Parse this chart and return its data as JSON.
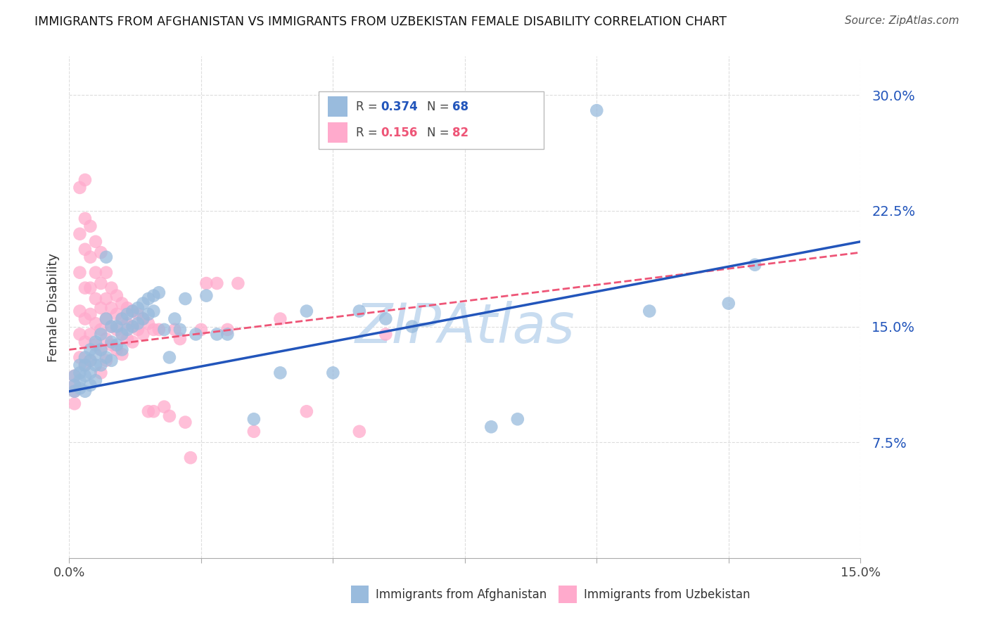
{
  "title": "IMMIGRANTS FROM AFGHANISTAN VS IMMIGRANTS FROM UZBEKISTAN FEMALE DISABILITY CORRELATION CHART",
  "source": "Source: ZipAtlas.com",
  "ylabel": "Female Disability",
  "yticks": [
    0.075,
    0.15,
    0.225,
    0.3
  ],
  "ytick_labels": [
    "7.5%",
    "15.0%",
    "22.5%",
    "30.0%"
  ],
  "xmin": 0.0,
  "xmax": 0.15,
  "ymin": 0.0,
  "ymax": 0.325,
  "blue_R": "0.374",
  "blue_N": "68",
  "pink_R": "0.156",
  "pink_N": "82",
  "blue_color": "#99BBDD",
  "pink_color": "#FFAACC",
  "blue_line_color": "#2255BB",
  "pink_line_color": "#EE5577",
  "watermark": "ZIPAtlas",
  "watermark_color": "#C8DCF0",
  "legend_label_blue": "Immigrants from Afghanistan",
  "legend_label_pink": "Immigrants from Uzbekistan",
  "blue_scatter_x": [
    0.001,
    0.001,
    0.001,
    0.002,
    0.002,
    0.002,
    0.002,
    0.003,
    0.003,
    0.003,
    0.003,
    0.004,
    0.004,
    0.004,
    0.004,
    0.005,
    0.005,
    0.005,
    0.005,
    0.006,
    0.006,
    0.006,
    0.007,
    0.007,
    0.007,
    0.008,
    0.008,
    0.008,
    0.009,
    0.009,
    0.01,
    0.01,
    0.01,
    0.011,
    0.011,
    0.012,
    0.012,
    0.013,
    0.013,
    0.014,
    0.014,
    0.015,
    0.015,
    0.016,
    0.016,
    0.017,
    0.018,
    0.019,
    0.02,
    0.021,
    0.022,
    0.024,
    0.026,
    0.028,
    0.03,
    0.035,
    0.04,
    0.045,
    0.05,
    0.055,
    0.06,
    0.065,
    0.08,
    0.085,
    0.1,
    0.11,
    0.125,
    0.13
  ],
  "blue_scatter_y": [
    0.118,
    0.112,
    0.108,
    0.125,
    0.12,
    0.115,
    0.11,
    0.13,
    0.125,
    0.118,
    0.108,
    0.135,
    0.128,
    0.12,
    0.112,
    0.14,
    0.132,
    0.125,
    0.115,
    0.145,
    0.135,
    0.125,
    0.195,
    0.155,
    0.13,
    0.15,
    0.14,
    0.128,
    0.15,
    0.138,
    0.155,
    0.145,
    0.135,
    0.158,
    0.148,
    0.16,
    0.15,
    0.162,
    0.152,
    0.165,
    0.155,
    0.168,
    0.158,
    0.17,
    0.16,
    0.172,
    0.148,
    0.13,
    0.155,
    0.148,
    0.168,
    0.145,
    0.17,
    0.145,
    0.145,
    0.09,
    0.12,
    0.16,
    0.12,
    0.16,
    0.155,
    0.15,
    0.085,
    0.09,
    0.29,
    0.16,
    0.165,
    0.19
  ],
  "pink_scatter_x": [
    0.001,
    0.001,
    0.001,
    0.001,
    0.002,
    0.002,
    0.002,
    0.002,
    0.002,
    0.002,
    0.003,
    0.003,
    0.003,
    0.003,
    0.003,
    0.003,
    0.003,
    0.004,
    0.004,
    0.004,
    0.004,
    0.004,
    0.004,
    0.005,
    0.005,
    0.005,
    0.005,
    0.005,
    0.006,
    0.006,
    0.006,
    0.006,
    0.006,
    0.006,
    0.007,
    0.007,
    0.007,
    0.007,
    0.007,
    0.008,
    0.008,
    0.008,
    0.008,
    0.009,
    0.009,
    0.009,
    0.009,
    0.01,
    0.01,
    0.01,
    0.01,
    0.011,
    0.011,
    0.011,
    0.012,
    0.012,
    0.012,
    0.013,
    0.013,
    0.014,
    0.014,
    0.015,
    0.015,
    0.016,
    0.016,
    0.017,
    0.018,
    0.019,
    0.02,
    0.021,
    0.022,
    0.023,
    0.025,
    0.026,
    0.028,
    0.03,
    0.032,
    0.035,
    0.04,
    0.045,
    0.055,
    0.06
  ],
  "pink_scatter_y": [
    0.118,
    0.112,
    0.108,
    0.1,
    0.24,
    0.21,
    0.185,
    0.16,
    0.145,
    0.13,
    0.245,
    0.22,
    0.2,
    0.175,
    0.155,
    0.14,
    0.125,
    0.215,
    0.195,
    0.175,
    0.158,
    0.145,
    0.128,
    0.205,
    0.185,
    0.168,
    0.152,
    0.138,
    0.198,
    0.178,
    0.162,
    0.148,
    0.135,
    0.12,
    0.185,
    0.168,
    0.155,
    0.142,
    0.128,
    0.175,
    0.162,
    0.15,
    0.138,
    0.17,
    0.158,
    0.148,
    0.135,
    0.165,
    0.155,
    0.145,
    0.132,
    0.162,
    0.152,
    0.142,
    0.16,
    0.15,
    0.14,
    0.158,
    0.148,
    0.155,
    0.145,
    0.152,
    0.095,
    0.148,
    0.095,
    0.148,
    0.098,
    0.092,
    0.148,
    0.142,
    0.088,
    0.065,
    0.148,
    0.178,
    0.178,
    0.148,
    0.178,
    0.082,
    0.155,
    0.095,
    0.082,
    0.145
  ]
}
